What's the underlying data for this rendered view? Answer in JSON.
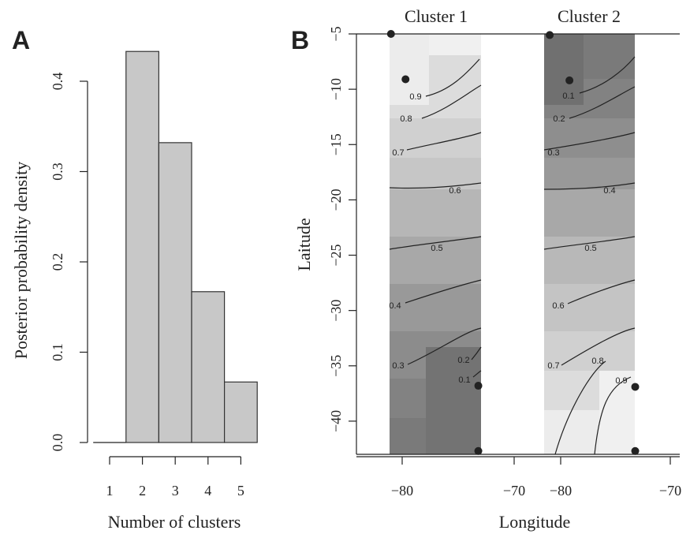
{
  "chart_data": [
    {
      "type": "bar",
      "panel_label": "A",
      "xlabel": "Number of clusters",
      "ylabel": "Posterior probability density",
      "categories": [
        "1",
        "2",
        "3",
        "4",
        "5"
      ],
      "values": [
        0.0,
        0.433,
        0.332,
        0.167,
        0.067
      ],
      "ylim": [
        0,
        0.44
      ],
      "yticks": [
        "0.0",
        "0.1",
        "0.2",
        "0.3",
        "0.4"
      ],
      "grid": false
    },
    {
      "type": "heatmap",
      "panel_label": "B",
      "xlabel": "Longitude",
      "ylabel": "Laitude",
      "xticks": [
        "−80",
        "−70"
      ],
      "yticks": [
        "−5",
        "−10",
        "−15",
        "−20",
        "−25",
        "−30",
        "−35",
        "−40"
      ],
      "ylim": [
        -43,
        -5
      ],
      "subplots": [
        {
          "title": "Cluster 1",
          "xlim": [
            -81.5,
            -73.2
          ],
          "points": [
            {
              "lon": -81,
              "lat": -5.0
            },
            {
              "lon": -79.7,
              "lat": -9.1
            },
            {
              "lon": -73.2,
              "lat": -36.8
            },
            {
              "lon": -73.2,
              "lat": -42.7
            }
          ],
          "contour_labels": [
            "0.9",
            "0.8",
            "0.7",
            "0.6",
            "0.5",
            "0.4",
            "0.3",
            "0.2",
            "0.1"
          ]
        },
        {
          "title": "Cluster 2",
          "xlim": [
            -81.5,
            -73.2
          ],
          "points": [
            {
              "lon": -81,
              "lat": -5.1
            },
            {
              "lon": -79.2,
              "lat": -9.2
            },
            {
              "lon": -73.2,
              "lat": -36.9
            },
            {
              "lon": -73.2,
              "lat": -42.7
            }
          ],
          "contour_labels": [
            "0.1",
            "0.2",
            "0.3",
            "0.4",
            "0.5",
            "0.6",
            "0.7",
            "0.8",
            "0.9"
          ]
        }
      ]
    }
  ]
}
